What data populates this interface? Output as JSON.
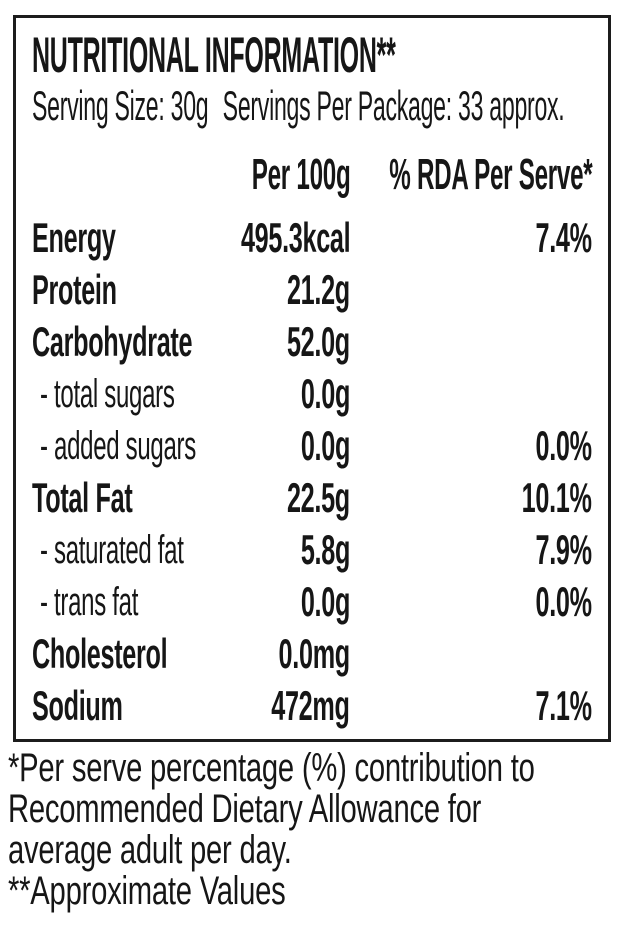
{
  "panel": {
    "title": "NUTRITIONAL INFORMATION**",
    "serving_size": "Serving Size: 30g",
    "servings_per_package": "Servings Per Package: 33 approx.",
    "columns": {
      "per_100g": "Per 100g",
      "rda_per_serve": "% RDA Per Serve*"
    },
    "rows": [
      {
        "label": "Energy",
        "value": "495.3kcal",
        "rda": "7.4%"
      },
      {
        "label": "Protein",
        "value": "21.2g",
        "rda": ""
      },
      {
        "label": "Carbohydrate",
        "value": "52.0g",
        "rda": ""
      },
      {
        "label": "- total sugars",
        "value": "0.0g",
        "rda": ""
      },
      {
        "label": "- added sugars",
        "value": "0.0g",
        "rda": "0.0%"
      },
      {
        "label": "Total Fat",
        "value": "22.5g",
        "rda": "10.1%"
      },
      {
        "label": "- saturated fat",
        "value": "5.8g",
        "rda": "7.9%"
      },
      {
        "label": "- trans fat",
        "value": "0.0g",
        "rda": "0.0%"
      },
      {
        "label": "Cholesterol",
        "value": "0.0mg",
        "rda": ""
      },
      {
        "label": "Sodium",
        "value": "472mg",
        "rda": "7.1%"
      }
    ]
  },
  "footnotes": {
    "lines": [
      "*Per serve percentage (%) contribution to",
      "Recommended Dietary Allowance for",
      "average adult per day.",
      "**Approximate Values"
    ]
  },
  "colors": {
    "text": "#161616",
    "border": "#1c1c1c",
    "background": "#ffffff"
  }
}
